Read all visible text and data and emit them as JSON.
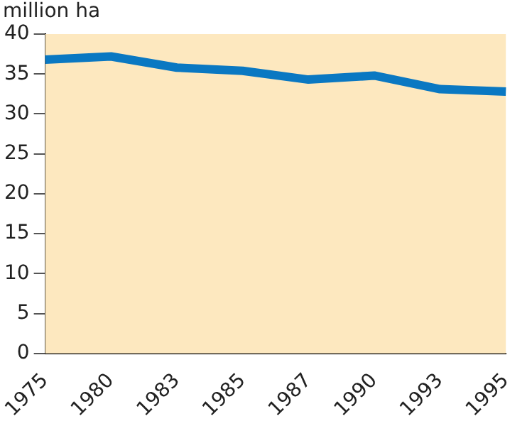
{
  "chart_data": {
    "type": "line",
    "ylabel": "million ha",
    "categories": [
      "1975",
      "1980",
      "1983",
      "1985",
      "1987",
      "1990",
      "1993",
      "1995"
    ],
    "series": [
      {
        "color": "#0a78c2",
        "values": [
          36.8,
          37.2,
          35.8,
          35.4,
          34.3,
          34.8,
          33.1,
          32.8
        ]
      }
    ],
    "ylim": [
      0,
      40
    ],
    "yticks": [
      0,
      5,
      10,
      15,
      20,
      25,
      30,
      35,
      40
    ],
    "grid": false,
    "legend": false,
    "marker": "none",
    "line_style": "solid"
  }
}
